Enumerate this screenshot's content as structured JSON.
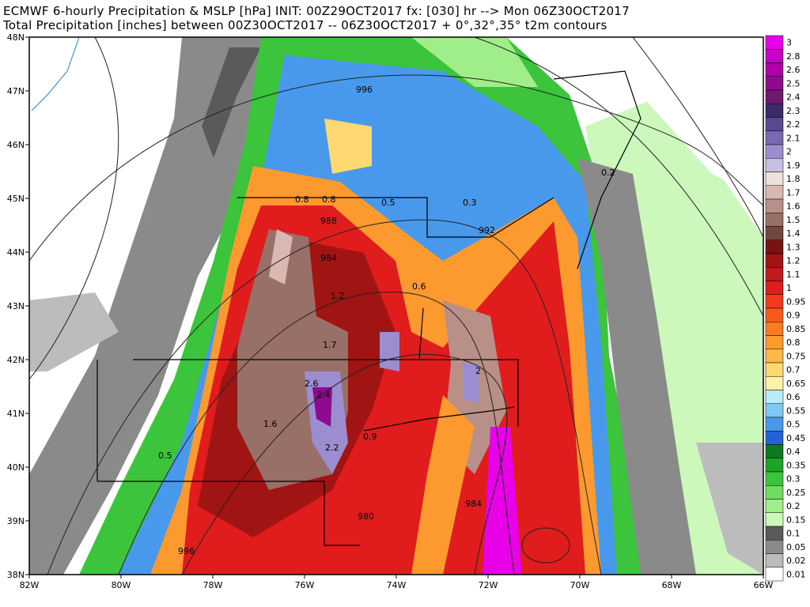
{
  "header": {
    "line1": "ECMWF 6-hourly Precipitation & MSLP [hPa] INIT: 00Z29OCT2017 fx: [030] hr --> Mon 06Z30OCT2017",
    "line2": "Total Precipitation [inches] between 00Z30OCT2017 -- 06Z30OCT2017  + 0°,32°,35° t2m contours"
  },
  "map": {
    "lon_labels": [
      "82W",
      "80W",
      "78W",
      "76W",
      "74W",
      "72W",
      "70W",
      "68W",
      "66W"
    ],
    "lat_labels": [
      "48N",
      "47N",
      "46N",
      "45N",
      "44N",
      "43N",
      "42N",
      "41N",
      "40N",
      "39N",
      "38N"
    ],
    "contour_labels": [
      "996",
      "988",
      "984",
      "992",
      "984",
      "980",
      "996"
    ],
    "value_labels": [
      "0.8",
      "0.8",
      "0.5",
      "1.2",
      "1.7",
      "2.6",
      "2.4",
      "2.2",
      "1.6",
      "0.9",
      "0.6",
      "0.3",
      "0.2",
      "0.5",
      "2"
    ]
  },
  "colorbar": {
    "levels": [
      {
        "label": "3",
        "color": "#e800e8"
      },
      {
        "label": "2.8",
        "color": "#c800c8"
      },
      {
        "label": "2.6",
        "color": "#b000a8"
      },
      {
        "label": "2.5",
        "color": "#8e0a8e"
      },
      {
        "label": "2.4",
        "color": "#701870"
      },
      {
        "label": "2.3",
        "color": "#3c2a6c"
      },
      {
        "label": "2.2",
        "color": "#5a4890"
      },
      {
        "label": "2.1",
        "color": "#7a68b0"
      },
      {
        "label": "2",
        "color": "#9c8cd0"
      },
      {
        "label": "1.9",
        "color": "#c8c0e4"
      },
      {
        "label": "1.8",
        "color": "#f0e0dc"
      },
      {
        "label": "1.7",
        "color": "#d8b8b0"
      },
      {
        "label": "1.6",
        "color": "#b89088"
      },
      {
        "label": "1.5",
        "color": "#987068"
      },
      {
        "label": "1.4",
        "color": "#70463e"
      },
      {
        "label": "1.3",
        "color": "#7a1010"
      },
      {
        "label": "1.2",
        "color": "#a01414"
      },
      {
        "label": "1.1",
        "color": "#c01a1a"
      },
      {
        "label": "1",
        "color": "#e01c1c"
      },
      {
        "label": "0.95",
        "color": "#f03c1c"
      },
      {
        "label": "0.9",
        "color": "#f85a1c"
      },
      {
        "label": "0.85",
        "color": "#fa7c22"
      },
      {
        "label": "0.8",
        "color": "#fc9a30"
      },
      {
        "label": "0.75",
        "color": "#fdb848"
      },
      {
        "label": "0.7",
        "color": "#fed870"
      },
      {
        "label": "0.65",
        "color": "#fff2a8"
      },
      {
        "label": "0.6",
        "color": "#b8ecf8"
      },
      {
        "label": "0.55",
        "color": "#80c8f4"
      },
      {
        "label": "0.5",
        "color": "#4898ec"
      },
      {
        "label": "0.45",
        "color": "#2064d8"
      },
      {
        "label": "0.4",
        "color": "#0e7a1e"
      },
      {
        "label": "0.35",
        "color": "#1aa428"
      },
      {
        "label": "0.3",
        "color": "#3cc43c"
      },
      {
        "label": "0.25",
        "color": "#6ede5c"
      },
      {
        "label": "0.2",
        "color": "#a0ee8a"
      },
      {
        "label": "0.15",
        "color": "#ccf8bc"
      },
      {
        "label": "0.1",
        "color": "#5a5a5a"
      },
      {
        "label": "0.05",
        "color": "#8a8a8a"
      },
      {
        "label": "0.02",
        "color": "#bcbcbc"
      },
      {
        "label": "0.01",
        "color": "#ffffff"
      }
    ]
  }
}
